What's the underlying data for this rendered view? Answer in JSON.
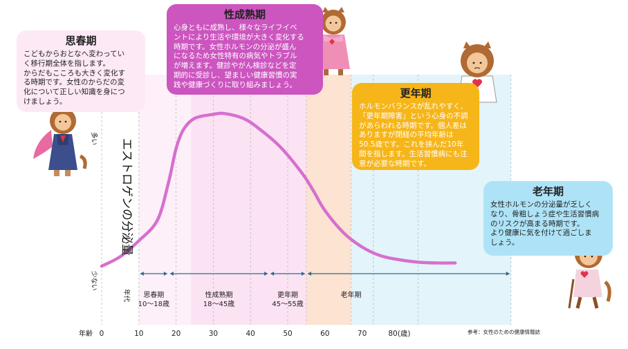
{
  "boxes": {
    "puberty": {
      "title": "思春期",
      "text": "こどもからおとなへ変わってい\nく移行期全体を指します。\nからだもこころも大きく変化す\nる時期です。女性のからだの変\n化について正しい知識を身につ\nけましょう。"
    },
    "mature": {
      "title": "性成熟期",
      "text": "心身ともに成熟し、様々なライフイベ\nントにより生活や環境が大きく変化する\n時期です。女性ホルモンの分泌が盛ん\nになるため女性特有の病気やトラブル\nが増えます。健診やがん検診などを定\n期的に受診し、望ましい健康習慣の実\n践や健康づくりに取り組みましょう。"
    },
    "menopause": {
      "title": "更年期",
      "text": "ホルモンバランスが乱れやすく、\n「更年期障害」という心身の不調\nがあらわれる時期です。個人差は\nありますが閉経の平均年齢は\n50.5歳です。これを挟んだ10年\n間を指します。生活習慣病にも注\n意が必要な時期です。"
    },
    "senior": {
      "title": "老年期",
      "text": "女性ホルモンの分泌量が乏しく\nなり、骨粗しょう症や生活習慣病\nのリスクが高まる時期です。\nより健康に気を付けて過ごしま\nしょう。"
    }
  },
  "chart_data": {
    "type": "line",
    "ylabel": "エストロゲンの分泌量",
    "y_high_label": "多い",
    "y_low_label": "少ない",
    "x_axis_title": "年齢",
    "x_ticks": [
      0,
      10,
      20,
      30,
      40,
      50,
      60,
      70,
      80
    ],
    "x_tick_labels": [
      "0",
      "10",
      "20",
      "30",
      "40",
      "50",
      "60",
      "70",
      "80(歳)"
    ],
    "xlim": [
      0,
      110
    ],
    "period_header": "年代",
    "source": "参考：女性のための健康情報誌",
    "bands": [
      {
        "start": 10,
        "end": 24,
        "color": "#fdf0f9"
      },
      {
        "start": 24,
        "end": 55,
        "color": "#fbe3f4"
      },
      {
        "start": 55,
        "end": 67,
        "color": "#fde3d2"
      },
      {
        "start": 67,
        "end": 110,
        "color": "#e3f4fb"
      }
    ],
    "periods": [
      {
        "name": "思春期",
        "range": "10〜18歳",
        "start": 10,
        "end": 18
      },
      {
        "name": "性成熟期",
        "range": "18〜45歳",
        "start": 18,
        "end": 45
      },
      {
        "name": "更年期",
        "range": "45〜55歳",
        "start": 45,
        "end": 55
      },
      {
        "name": "老年期",
        "range": "",
        "start": 55,
        "end": 110
      }
    ],
    "series": [
      {
        "color": "#d66fcf",
        "level": [
          [
            0,
            0.03
          ],
          [
            5,
            0.09
          ],
          [
            10,
            0.19
          ],
          [
            15,
            0.32
          ],
          [
            18,
            0.56
          ],
          [
            20,
            0.77
          ],
          [
            22,
            0.89
          ],
          [
            25,
            0.96
          ],
          [
            30,
            0.985
          ],
          [
            33,
            0.99
          ],
          [
            38,
            0.96
          ],
          [
            42,
            0.9
          ],
          [
            48,
            0.78
          ],
          [
            54,
            0.61
          ],
          [
            57,
            0.5
          ],
          [
            60,
            0.38
          ],
          [
            65,
            0.24
          ],
          [
            70,
            0.15
          ],
          [
            75,
            0.095
          ],
          [
            80,
            0.07
          ],
          [
            85,
            0.055
          ],
          [
            90,
            0.05
          ],
          [
            95,
            0.05
          ]
        ]
      }
    ]
  }
}
